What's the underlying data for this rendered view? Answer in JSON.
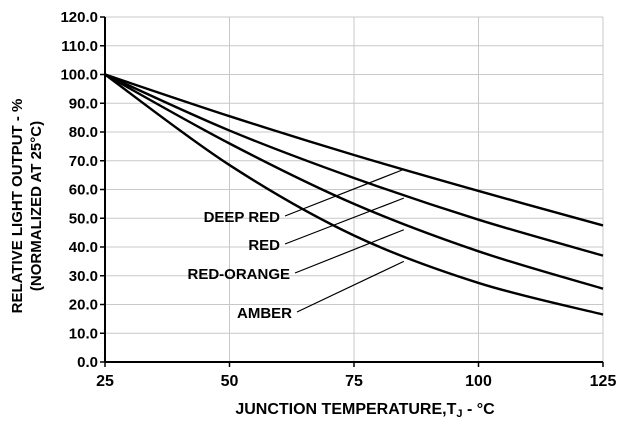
{
  "chart_data": {
    "type": "line",
    "title": "",
    "xlabel_main": "JUNCTION TEMPERATURE,T",
    "xlabel_sub": "J",
    "xlabel_unit": " - °C",
    "ylabel_line1": "RELATIVE LIGHT OUTPUT - %",
    "ylabel_line2": "(NORMALIZED AT 25°C)",
    "xlim": [
      25,
      125
    ],
    "ylim": [
      0,
      120
    ],
    "x_ticks": [
      25,
      50,
      75,
      100,
      125
    ],
    "x_tick_labels": [
      "25",
      "50",
      "75",
      "100",
      "125"
    ],
    "y_ticks": [
      0,
      10,
      20,
      30,
      40,
      50,
      60,
      70,
      80,
      90,
      100,
      110,
      120
    ],
    "y_tick_labels": [
      "0.0",
      "10.0",
      "20.0",
      "30.0",
      "40.0",
      "50.0",
      "60.0",
      "70.0",
      "80.0",
      "90.0",
      "100.0",
      "110.0",
      "120.0"
    ],
    "grid": true,
    "legend": "callouts",
    "series": [
      {
        "name": "DEEP RED",
        "x": [
          25,
          50,
          75,
          100,
          125
        ],
        "values": [
          100,
          85.5,
          72,
          59.5,
          47.5
        ],
        "label_at": [
          85,
          67
        ]
      },
      {
        "name": "RED",
        "x": [
          25,
          50,
          75,
          100,
          125
        ],
        "values": [
          100,
          80.5,
          64,
          49.5,
          37
        ],
        "label_at": [
          85,
          57
        ]
      },
      {
        "name": "RED-ORANGE",
        "x": [
          25,
          50,
          75,
          100,
          125
        ],
        "values": [
          100,
          76,
          55,
          38.5,
          25.5
        ],
        "label_at": [
          85,
          46
        ]
      },
      {
        "name": "AMBER",
        "x": [
          25,
          50,
          75,
          100,
          125
        ],
        "values": [
          100,
          68.5,
          44,
          27.5,
          16.5
        ],
        "label_at": [
          85,
          35
        ]
      }
    ],
    "colors": {
      "line": "#000000",
      "grid": "#c8c8c8",
      "axis": "#000000"
    }
  }
}
